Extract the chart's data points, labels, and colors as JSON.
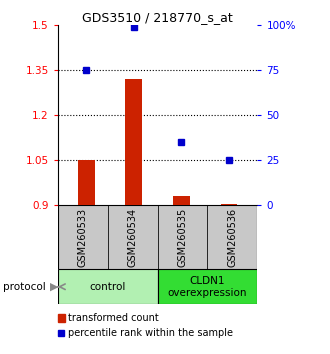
{
  "title": "GDS3510 / 218770_s_at",
  "samples": [
    "GSM260533",
    "GSM260534",
    "GSM260535",
    "GSM260536"
  ],
  "transformed_counts": [
    1.05,
    1.32,
    0.93,
    0.905
  ],
  "percentile_ranks": [
    75,
    99,
    35,
    25
  ],
  "ylim": [
    0.9,
    1.5
  ],
  "y_ticks_left": [
    0.9,
    1.05,
    1.2,
    1.35,
    1.5
  ],
  "y_ticks_right": [
    0,
    25,
    50,
    75,
    100
  ],
  "group0_label": "control",
  "group0_color": "#b2f0b2",
  "group1_label": "CLDN1\noverexpression",
  "group1_color": "#33dd33",
  "bar_color": "#cc2200",
  "dot_color": "#0000cc",
  "bar_bottom": 0.9,
  "legend_red_label": "transformed count",
  "legend_blue_label": "percentile rank within the sample",
  "protocol_label": "protocol",
  "sample_box_color": "#c8c8c8",
  "dotted_lines": [
    1.05,
    1.2,
    1.35
  ]
}
